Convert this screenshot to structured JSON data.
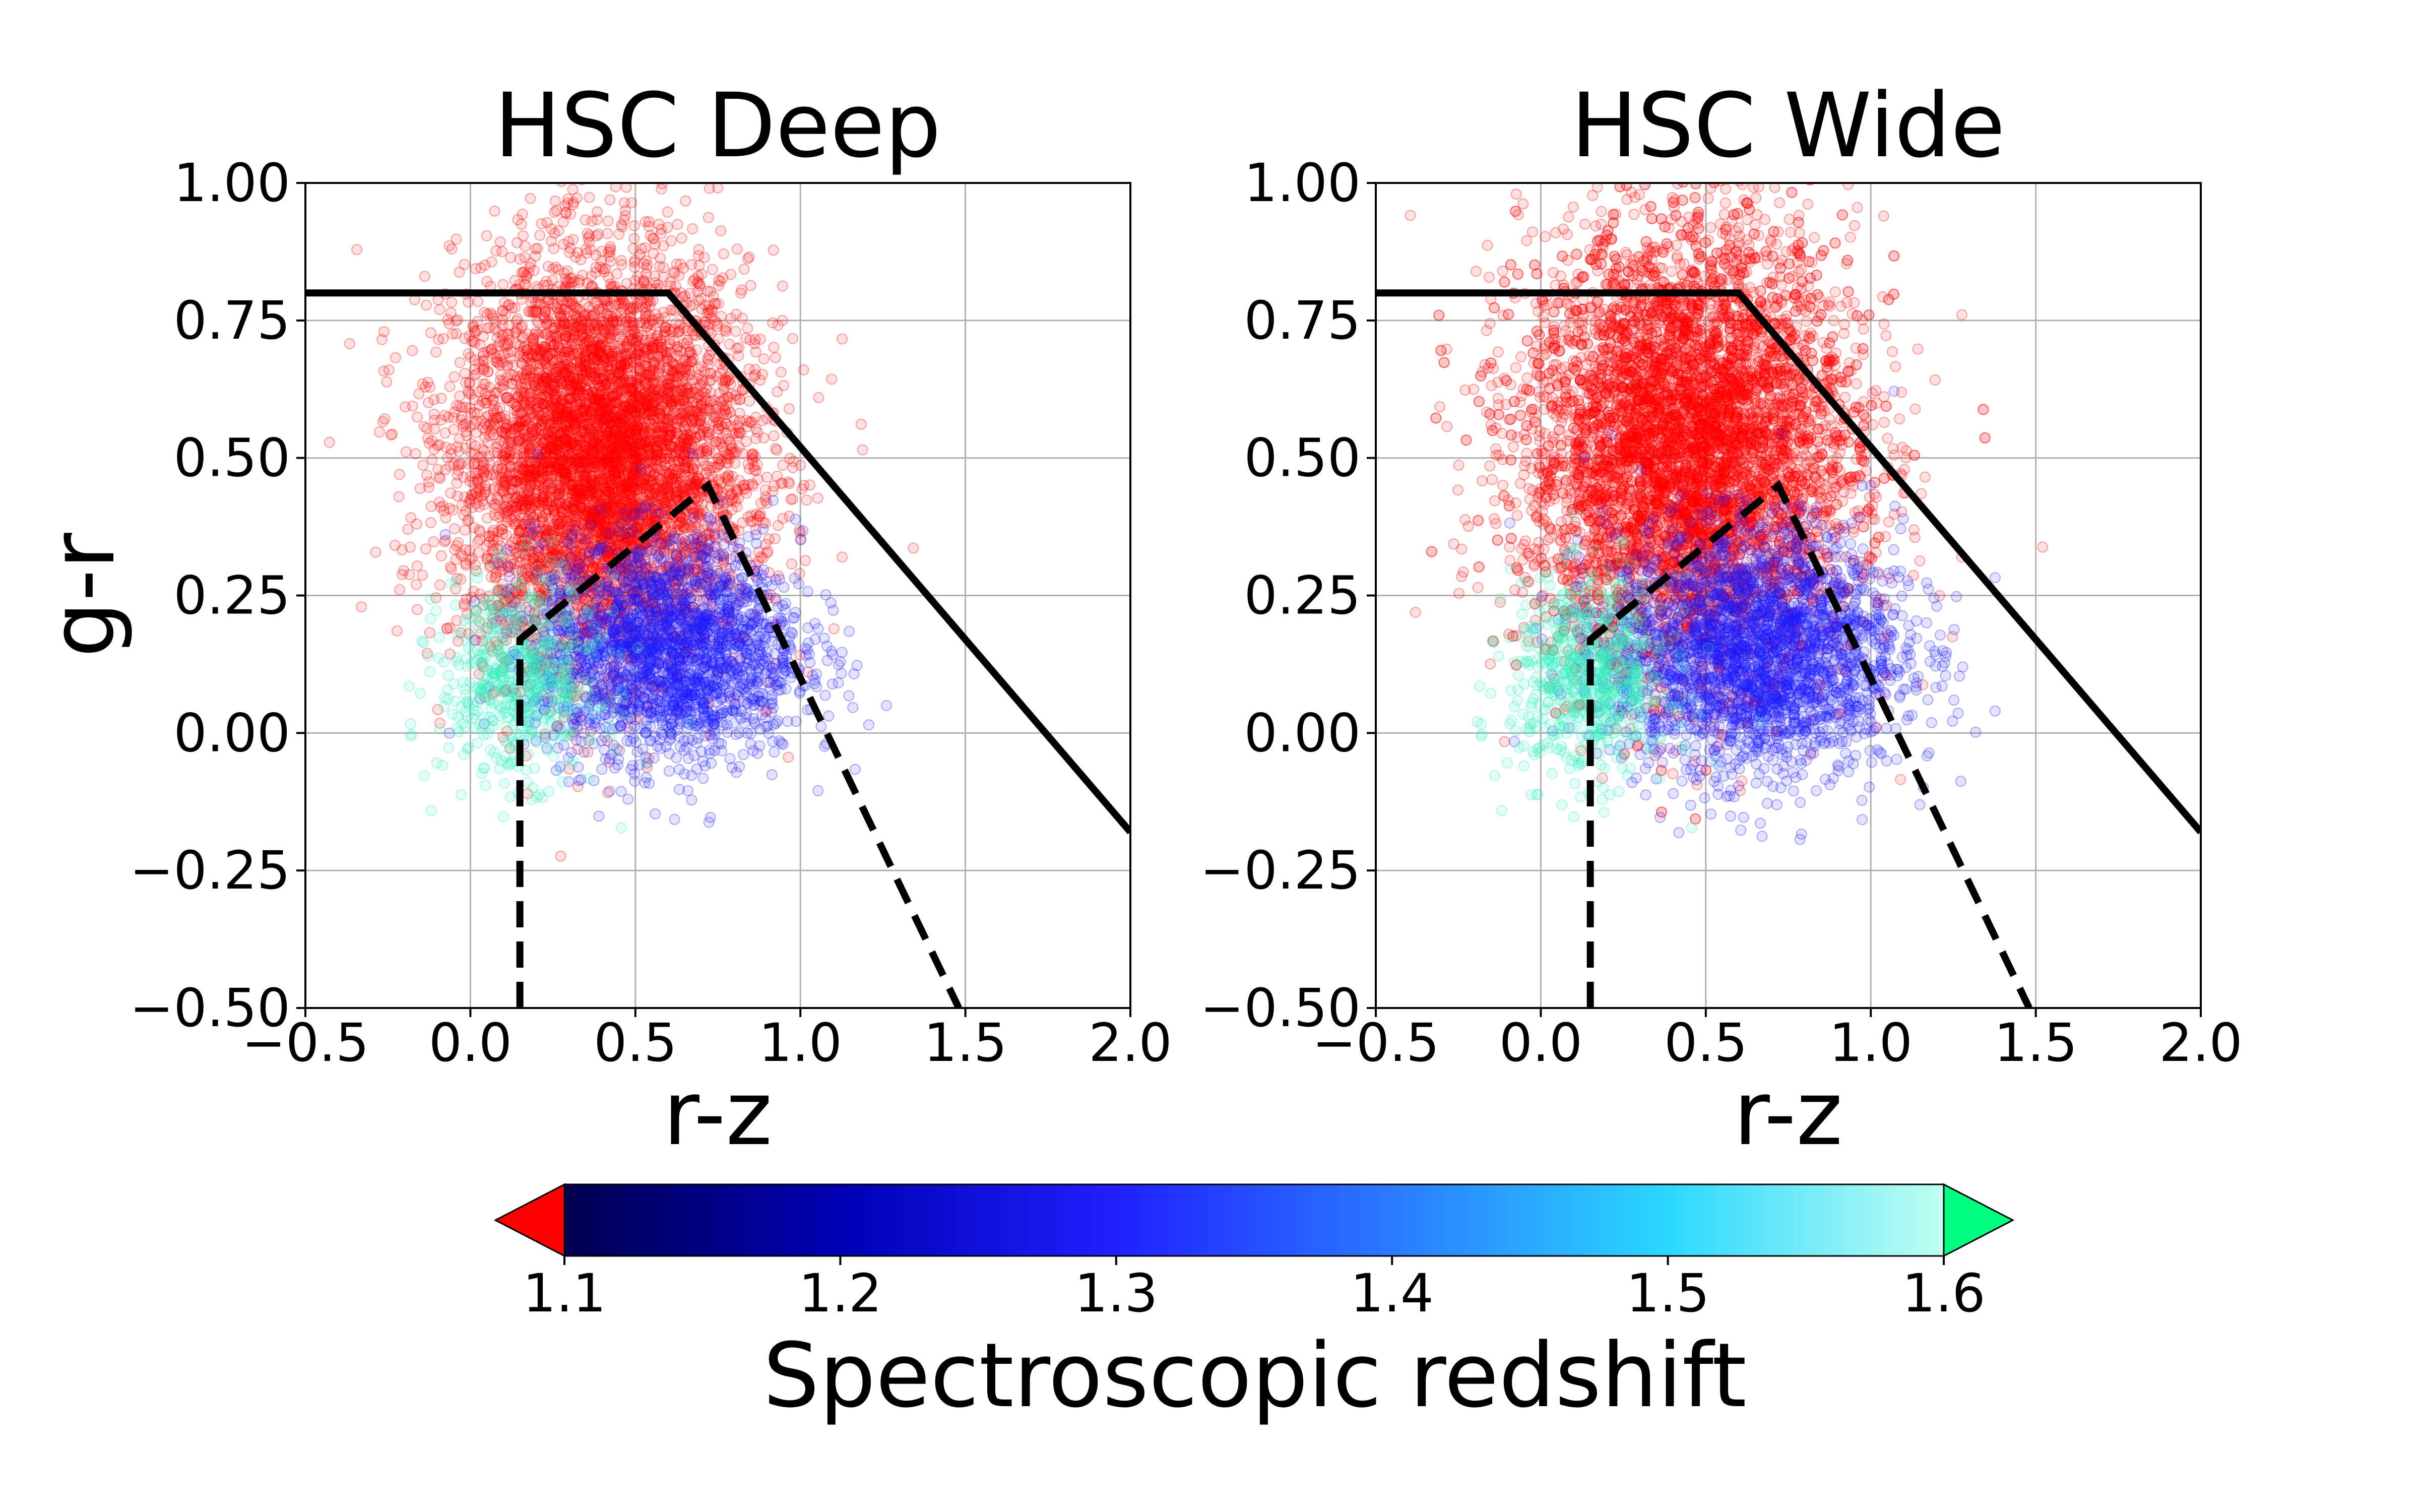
{
  "chart_data": [
    {
      "type": "scatter",
      "title": "HSC Deep",
      "xlabel": "r-z",
      "ylabel": "g-r",
      "xlim": [
        -0.5,
        2.0
      ],
      "ylim": [
        -0.5,
        1.0
      ],
      "xticks": [
        "−0.5",
        "0.0",
        "0.5",
        "1.0",
        "1.5",
        "2.0"
      ],
      "xtick_values": [
        -0.5,
        0.0,
        0.5,
        1.0,
        1.5,
        2.0
      ],
      "yticks": [
        "−0.50",
        "−0.25",
        "0.00",
        "0.25",
        "0.50",
        "0.75",
        "1.00"
      ],
      "ytick_values": [
        -0.5,
        -0.25,
        0.0,
        0.25,
        0.5,
        0.75,
        1.0
      ],
      "grid": true,
      "cut_solid": {
        "x": [
          -0.5,
          0.6,
          2.0
        ],
        "y": [
          0.8,
          0.8,
          -0.18
        ]
      },
      "cut_dashed": {
        "x": [
          0.15,
          0.15,
          0.72,
          1.48
        ],
        "y": [
          -0.5,
          0.17,
          0.45,
          -0.5
        ]
      },
      "clouds": [
        {
          "series": "z_below_1.1",
          "color": "#ff0000",
          "center": [
            0.4,
            0.5
          ],
          "spread": [
            0.22,
            0.18
          ],
          "count": 6000
        },
        {
          "series": "z_1.1_to_1.6",
          "color": "#1a1aff",
          "center": [
            0.6,
            0.15
          ],
          "spread": [
            0.2,
            0.1
          ],
          "count": 2200
        },
        {
          "series": "z_above_1.6",
          "color": "#30f0c0",
          "center": [
            0.15,
            0.1
          ],
          "spread": [
            0.12,
            0.09
          ],
          "count": 600
        }
      ]
    },
    {
      "type": "scatter",
      "title": "HSC Wide",
      "xlabel": "r-z",
      "ylabel": "",
      "xlim": [
        -0.5,
        2.0
      ],
      "ylim": [
        -0.5,
        1.0
      ],
      "xticks": [
        "−0.5",
        "0.0",
        "0.5",
        "1.0",
        "1.5",
        "2.0"
      ],
      "xtick_values": [
        -0.5,
        0.0,
        0.5,
        1.0,
        1.5,
        2.0
      ],
      "yticks": [
        "−0.50",
        "−0.25",
        "0.00",
        "0.25",
        "0.50",
        "0.75",
        "1.00"
      ],
      "ytick_values": [
        -0.5,
        -0.25,
        0.0,
        0.25,
        0.5,
        0.75,
        1.0
      ],
      "grid": true,
      "cut_solid": {
        "x": [
          -0.5,
          0.6,
          2.0
        ],
        "y": [
          0.8,
          0.8,
          -0.18
        ]
      },
      "cut_dashed": {
        "x": [
          0.15,
          0.15,
          0.72,
          1.48
        ],
        "y": [
          -0.5,
          0.17,
          0.45,
          -0.5
        ]
      },
      "clouds": [
        {
          "series": "z_below_1.1",
          "color": "#ff0000",
          "center": [
            0.45,
            0.52
          ],
          "spread": [
            0.25,
            0.2
          ],
          "count": 7000
        },
        {
          "series": "z_1.1_to_1.6",
          "color": "#1a1aff",
          "center": [
            0.65,
            0.15
          ],
          "spread": [
            0.22,
            0.11
          ],
          "count": 2600
        },
        {
          "series": "z_above_1.6",
          "color": "#30f0c0",
          "center": [
            0.15,
            0.1
          ],
          "spread": [
            0.12,
            0.09
          ],
          "count": 700
        }
      ]
    }
  ],
  "colorbar": {
    "label": "Spectroscopic redshift",
    "range": [
      1.1,
      1.6
    ],
    "ticks": [
      "1.1",
      "1.2",
      "1.3",
      "1.4",
      "1.5",
      "1.6"
    ],
    "tick_values": [
      1.1,
      1.2,
      1.3,
      1.4,
      1.5,
      1.6
    ],
    "extend_low_color": "#ff0000",
    "extend_high_color": "#00ff80",
    "gradient_colors": [
      "#000050",
      "#0000b4",
      "#2020ff",
      "#2a7aff",
      "#2ad8ff",
      "#c0fff0"
    ]
  }
}
